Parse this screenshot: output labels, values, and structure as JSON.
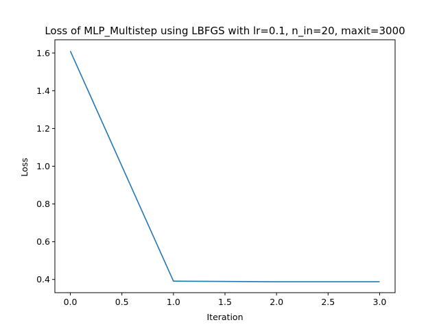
{
  "chart_data": {
    "type": "line",
    "title": "Loss of MLP_Multistep using LBFGS with lr=0.1, n_in=20, maxit=3000",
    "xlabel": "Iteration",
    "ylabel": "Loss",
    "xlim": [
      -0.15,
      3.15
    ],
    "ylim": [
      0.33,
      1.67
    ],
    "xticks": [
      0.0,
      0.5,
      1.0,
      1.5,
      2.0,
      2.5,
      3.0
    ],
    "xtick_labels": [
      "0.0",
      "0.5",
      "1.0",
      "1.5",
      "2.0",
      "2.5",
      "3.0"
    ],
    "yticks": [
      0.4,
      0.6,
      0.8,
      1.0,
      1.2,
      1.4,
      1.6
    ],
    "ytick_labels": [
      "0.4",
      "0.6",
      "0.8",
      "1.0",
      "1.2",
      "1.4",
      "1.6"
    ],
    "grid": false,
    "series": [
      {
        "x": [
          0,
          1,
          2,
          3
        ],
        "values": [
          1.61,
          0.391,
          0.388,
          0.388
        ],
        "color": "#1f77b4"
      }
    ]
  }
}
